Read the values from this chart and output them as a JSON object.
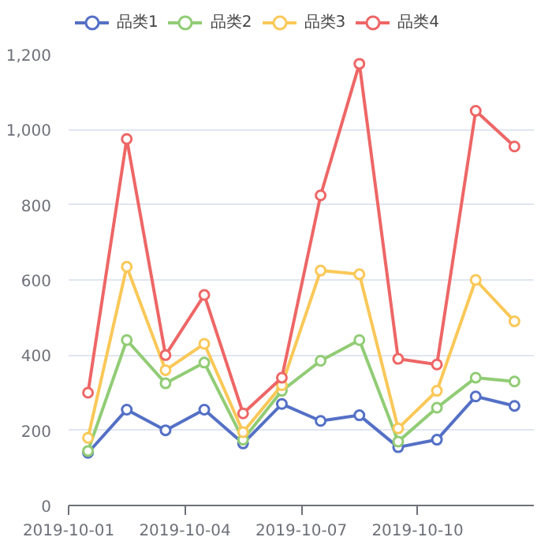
{
  "chart_data": {
    "type": "line",
    "x": [
      "2019-10-01T12:00",
      "2019-10-02T12:00",
      "2019-10-03T12:00",
      "2019-10-04T12:00",
      "2019-10-05T12:00",
      "2019-10-06T12:00",
      "2019-10-07T12:00",
      "2019-10-08T12:00",
      "2019-10-09T12:00",
      "2019-10-10T12:00",
      "2019-10-11T12:00",
      "2019-10-12T12:00"
    ],
    "series": [
      {
        "name": "品类1",
        "color": "#5470c6",
        "values": [
          140,
          255,
          200,
          255,
          165,
          270,
          225,
          240,
          155,
          175,
          290,
          265
        ]
      },
      {
        "name": "品类2",
        "color": "#91cc75",
        "values": [
          145,
          440,
          325,
          380,
          175,
          305,
          385,
          440,
          170,
          260,
          340,
          330
        ]
      },
      {
        "name": "品类3",
        "color": "#fac858",
        "values": [
          180,
          635,
          360,
          430,
          195,
          320,
          625,
          615,
          205,
          305,
          600,
          490
        ]
      },
      {
        "name": "品类4",
        "color": "#ee6666",
        "values": [
          300,
          975,
          400,
          560,
          245,
          340,
          825,
          1175,
          390,
          375,
          1050,
          955
        ]
      }
    ],
    "xlim": [
      "2019-10-01",
      "2019-10-13"
    ],
    "xticks": [
      "2019-10-01",
      "2019-10-04",
      "2019-10-07",
      "2019-10-10"
    ],
    "ylim": [
      0,
      1200
    ],
    "yticks": [
      0,
      200,
      400,
      600,
      800,
      {
        "value": 1000,
        "label": "1,000"
      },
      {
        "value": 1200,
        "label": "1,200"
      }
    ],
    "grid": "y",
    "legend": "top left",
    "marker": "circle",
    "line_style": "solid"
  }
}
